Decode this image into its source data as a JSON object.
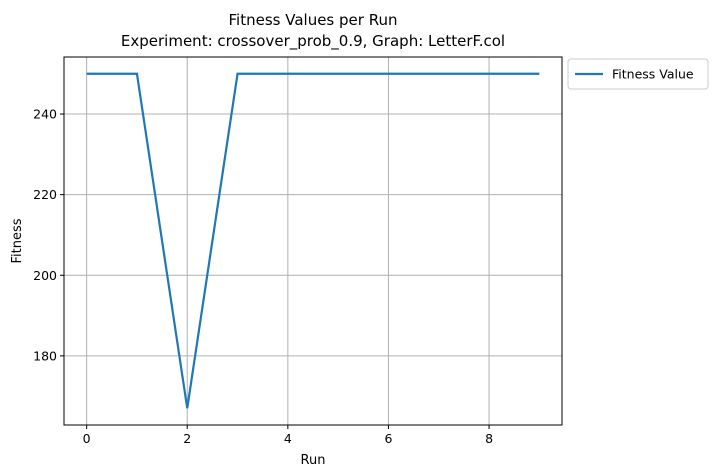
{
  "chart_data": {
    "type": "line",
    "title": "Fitness Values per Run",
    "subtitle": "Experiment: crossover_prob_0.9, Graph: LetterF.col",
    "xlabel": "Run",
    "ylabel": "Fitness",
    "x": [
      0,
      1,
      2,
      3,
      4,
      5,
      6,
      7,
      8,
      9
    ],
    "series": [
      {
        "name": "Fitness Value",
        "color": "#1f77b4",
        "values": [
          250,
          250,
          167,
          250,
          250,
          250,
          250,
          250,
          250,
          250
        ]
      }
    ],
    "xlim": [
      -0.45,
      9.45
    ],
    "ylim": [
      162.85,
      254.15
    ],
    "xticks": [
      0,
      2,
      4,
      6,
      8
    ],
    "yticks": [
      180,
      200,
      220,
      240
    ],
    "grid": true,
    "legend_position": "outside-top-right"
  }
}
